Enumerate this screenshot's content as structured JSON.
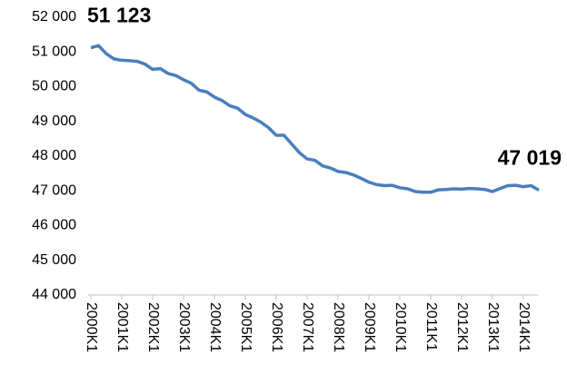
{
  "chart_data": {
    "type": "line",
    "categories": [
      "2000K1",
      null,
      null,
      null,
      "2001K1",
      null,
      null,
      null,
      "2002K1",
      null,
      null,
      null,
      "2003K1",
      null,
      null,
      null,
      "2004K1",
      null,
      null,
      null,
      "2005K1",
      null,
      null,
      null,
      "2006K1",
      null,
      null,
      null,
      "2007K1",
      null,
      null,
      null,
      "2008K1",
      null,
      null,
      null,
      "2009K1",
      null,
      null,
      null,
      "2010K1",
      null,
      null,
      null,
      "2011K1",
      null,
      null,
      null,
      "2012K1",
      null,
      null,
      null,
      "2013K1",
      null,
      null,
      null,
      "2014K1",
      null,
      null
    ],
    "series": [
      {
        "color": "#4a7ebb",
        "values": [
          51123,
          51180,
          50950,
          50800,
          50760,
          50750,
          50730,
          50650,
          50500,
          50520,
          50380,
          50320,
          50200,
          50100,
          49900,
          49850,
          49700,
          49600,
          49450,
          49380,
          49200,
          49100,
          48980,
          48820,
          48600,
          48600,
          48350,
          48100,
          47920,
          47880,
          47720,
          47660,
          47560,
          47530,
          47460,
          47360,
          47250,
          47180,
          47150,
          47160,
          47090,
          47060,
          46980,
          46960,
          46960,
          47030,
          47040,
          47060,
          47050,
          47070,
          47060,
          47040,
          46980,
          47070,
          47150,
          47160,
          47120,
          47150,
          47019
        ],
        "value_labels": [
          "51 123",
          null,
          null,
          null,
          null,
          null,
          null,
          null,
          null,
          null,
          null,
          null,
          null,
          null,
          null,
          null,
          null,
          null,
          null,
          null,
          null,
          null,
          null,
          null,
          null,
          null,
          null,
          null,
          null,
          null,
          null,
          null,
          null,
          null,
          null,
          null,
          null,
          null,
          null,
          null,
          null,
          null,
          null,
          null,
          null,
          null,
          null,
          null,
          null,
          null,
          null,
          null,
          null,
          null,
          null,
          null,
          null,
          null,
          "47 019"
        ]
      }
    ],
    "ylim": [
      44000,
      52000
    ],
    "yticks": [
      {
        "value": 44000,
        "label": "44 000"
      },
      {
        "value": 45000,
        "label": "45 000"
      },
      {
        "value": 46000,
        "label": "46 000"
      },
      {
        "value": 47000,
        "label": "47 000"
      },
      {
        "value": 48000,
        "label": "48 000"
      },
      {
        "value": 49000,
        "label": "49 000"
      },
      {
        "value": 50000,
        "label": "50 000"
      },
      {
        "value": 51000,
        "label": "51 000"
      },
      {
        "value": 52000,
        "label": "52 000"
      }
    ],
    "grid": false
  }
}
